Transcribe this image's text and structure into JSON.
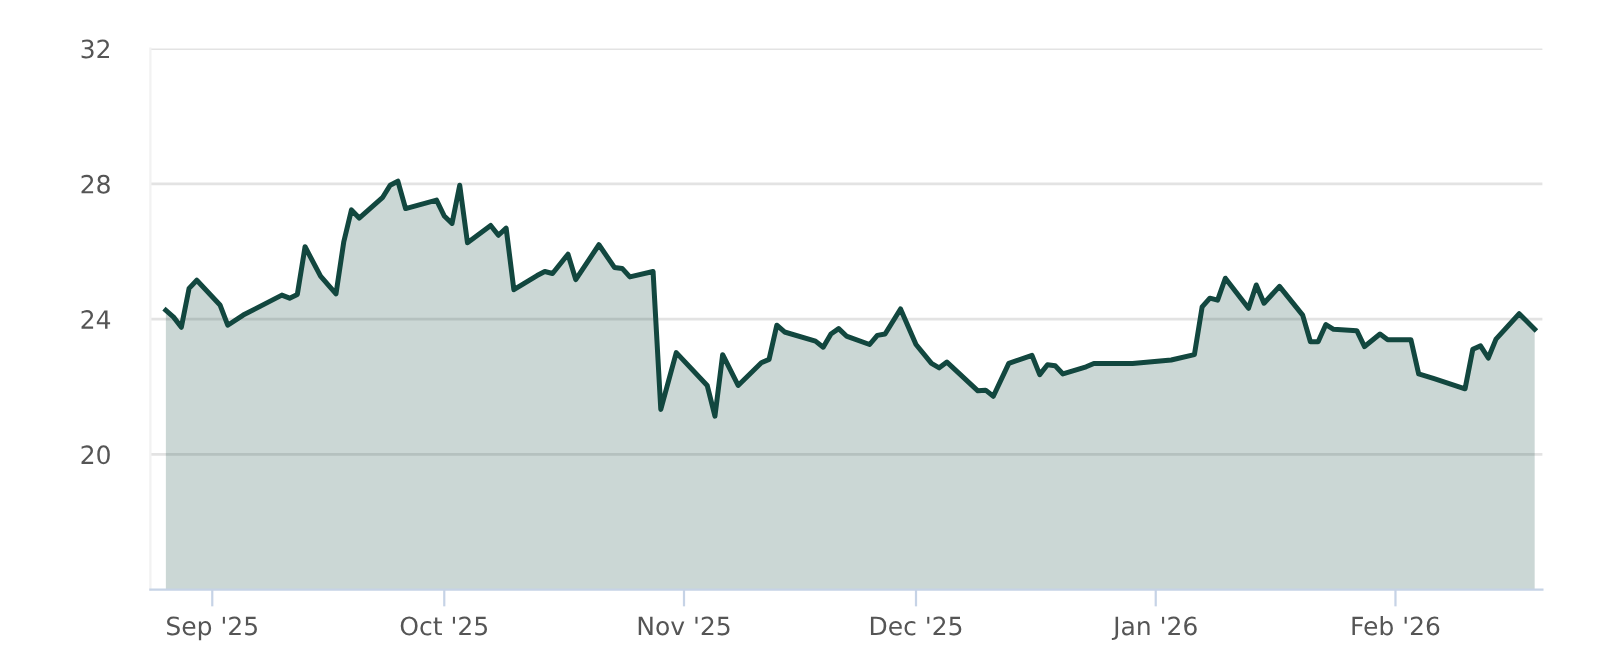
{
  "chart_data": {
    "type": "area",
    "x": [
      "2025-08-26",
      "2025-08-27",
      "2025-08-28",
      "2025-08-29",
      "2025-08-30",
      "2025-09-02",
      "2025-09-03",
      "2025-09-05",
      "2025-09-10",
      "2025-09-11",
      "2025-09-12",
      "2025-09-13",
      "2025-09-15",
      "2025-09-17",
      "2025-09-18",
      "2025-09-19",
      "2025-09-20",
      "2025-09-23",
      "2025-09-24",
      "2025-09-25",
      "2025-09-26",
      "2025-09-30",
      "2025-10-01",
      "2025-10-02",
      "2025-10-03",
      "2025-10-04",
      "2025-10-07",
      "2025-10-08",
      "2025-10-09",
      "2025-10-10",
      "2025-10-13",
      "2025-10-14",
      "2025-10-15",
      "2025-10-17",
      "2025-10-18",
      "2025-10-21",
      "2025-10-23",
      "2025-10-24",
      "2025-10-25",
      "2025-10-28",
      "2025-10-29",
      "2025-10-31",
      "2025-11-04",
      "2025-11-05",
      "2025-11-06",
      "2025-11-08",
      "2025-11-11",
      "2025-11-12",
      "2025-11-13",
      "2025-11-14",
      "2025-11-18",
      "2025-11-19",
      "2025-11-20",
      "2025-11-21",
      "2025-11-22",
      "2025-11-25",
      "2025-11-26",
      "2025-11-27",
      "2025-11-29",
      "2025-12-01",
      "2025-12-03",
      "2025-12-04",
      "2025-12-05",
      "2025-12-09",
      "2025-12-10",
      "2025-12-11",
      "2025-12-13",
      "2025-12-16",
      "2025-12-17",
      "2025-12-18",
      "2025-12-19",
      "2025-12-20",
      "2025-12-23",
      "2025-12-24",
      "2025-12-29",
      "2026-01-03",
      "2026-01-06",
      "2026-01-07",
      "2026-01-08",
      "2026-01-09",
      "2026-01-10",
      "2026-01-13",
      "2026-01-14",
      "2026-01-15",
      "2026-01-17",
      "2026-01-20",
      "2026-01-21",
      "2026-01-22",
      "2026-01-23",
      "2026-01-24",
      "2026-01-27",
      "2026-01-28",
      "2026-01-30",
      "2026-01-31",
      "2026-02-03",
      "2026-02-04",
      "2026-02-06",
      "2026-02-10",
      "2026-02-11",
      "2026-02-12",
      "2026-02-13",
      "2026-02-14",
      "2026-02-17",
      "2026-02-19"
    ],
    "series": [
      {
        "color": "#12473f",
        "values": [
          24.26,
          24.06,
          23.76,
          24.91,
          25.15,
          24.42,
          23.82,
          24.12,
          24.71,
          24.62,
          24.73,
          26.14,
          25.27,
          24.75,
          26.28,
          27.23,
          26.99,
          27.59,
          27.96,
          28.08,
          27.27,
          27.52,
          27.05,
          26.83,
          27.96,
          26.26,
          26.77,
          26.48,
          26.69,
          24.87,
          25.29,
          25.41,
          25.35,
          25.92,
          25.17,
          26.2,
          25.53,
          25.5,
          25.25,
          25.41,
          21.33,
          23.01,
          22.04,
          21.13,
          22.95,
          22.04,
          22.71,
          22.81,
          23.82,
          23.62,
          23.35,
          23.17,
          23.56,
          23.72,
          23.5,
          23.25,
          23.52,
          23.56,
          24.3,
          23.25,
          22.69,
          22.56,
          22.73,
          21.88,
          21.9,
          21.72,
          22.69,
          22.93,
          22.36,
          22.65,
          22.62,
          22.38,
          22.59,
          22.69,
          22.69,
          22.79,
          22.95,
          24.36,
          24.62,
          24.56,
          25.21,
          24.32,
          25.01,
          24.47,
          24.97,
          24.12,
          23.33,
          23.33,
          23.84,
          23.7,
          23.66,
          23.19,
          23.56,
          23.39,
          23.39,
          22.38,
          22.24,
          21.94,
          23.11,
          23.21,
          22.85,
          23.41,
          24.16,
          23.7
        ]
      }
    ],
    "xlim": [
      "2025-08-24",
      "2026-02-20"
    ],
    "xticks": [
      {
        "value": "2025-09-01",
        "label": "Sep '25"
      },
      {
        "value": "2025-10-01",
        "label": "Oct '25"
      },
      {
        "value": "2025-11-01",
        "label": "Nov '25"
      },
      {
        "value": "2025-12-01",
        "label": "Dec '25"
      },
      {
        "value": "2026-01-01",
        "label": "Jan '26"
      },
      {
        "value": "2026-02-01",
        "label": "Feb '26"
      }
    ],
    "ylim": [
      16,
      32
    ],
    "yticks": [
      20,
      24,
      28,
      32
    ],
    "grid": "y",
    "legend": false
  }
}
